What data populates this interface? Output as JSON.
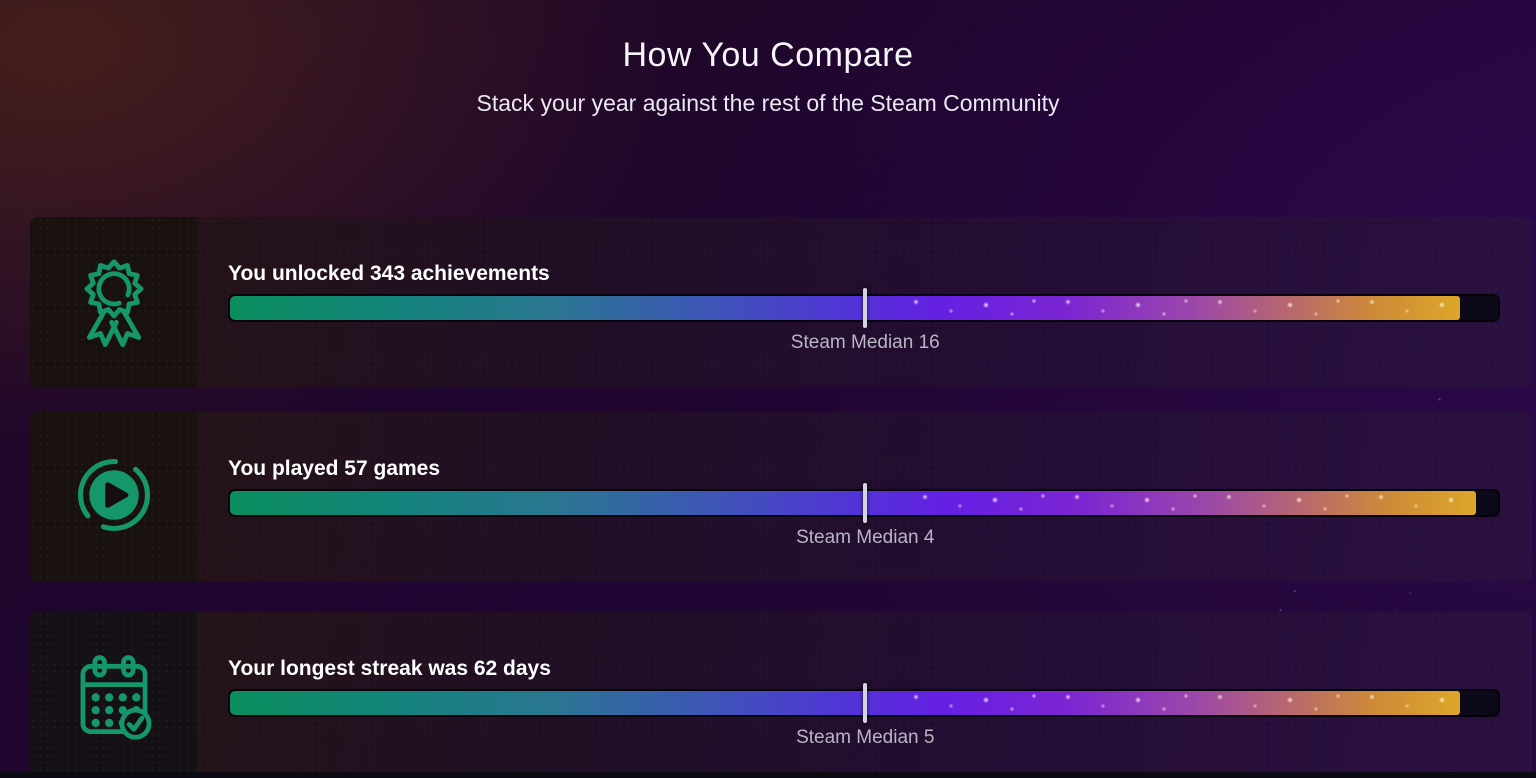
{
  "header": {
    "title": "How You Compare",
    "subtitle": "Stack your year against the rest of the Steam Community"
  },
  "colors": {
    "icon_green": "#15966B",
    "bar_gradient_start": "#0B8E5D",
    "bar_gradient_end": "#DDA62A",
    "median_marker": "#D5D3DE",
    "median_text": "#B9B6C3",
    "page_background": "#220739"
  },
  "chart_data": {
    "type": "bar",
    "title": "How You Compare",
    "subtitle": "Stack your year against the rest of the Steam Community",
    "legend_position": "none",
    "rows": [
      {
        "icon": "award-ribbon-icon",
        "label": "You unlocked 343 achievements",
        "user_value": 343,
        "steam_median": 16,
        "median_label": "Steam Median 16",
        "fill_percent": 97,
        "median_marker_percent": 50.1
      },
      {
        "icon": "play-circle-icon",
        "label": "You played 57 games",
        "user_value": 57,
        "steam_median": 4,
        "median_label": "Steam Median 4",
        "fill_percent": 98.3,
        "median_marker_percent": 50.1
      },
      {
        "icon": "calendar-check-icon",
        "label": "Your longest streak was 62 days",
        "user_value": 62,
        "steam_median": 5,
        "median_label": "Steam Median 5",
        "fill_percent": 97,
        "median_marker_percent": 50.1
      }
    ]
  }
}
